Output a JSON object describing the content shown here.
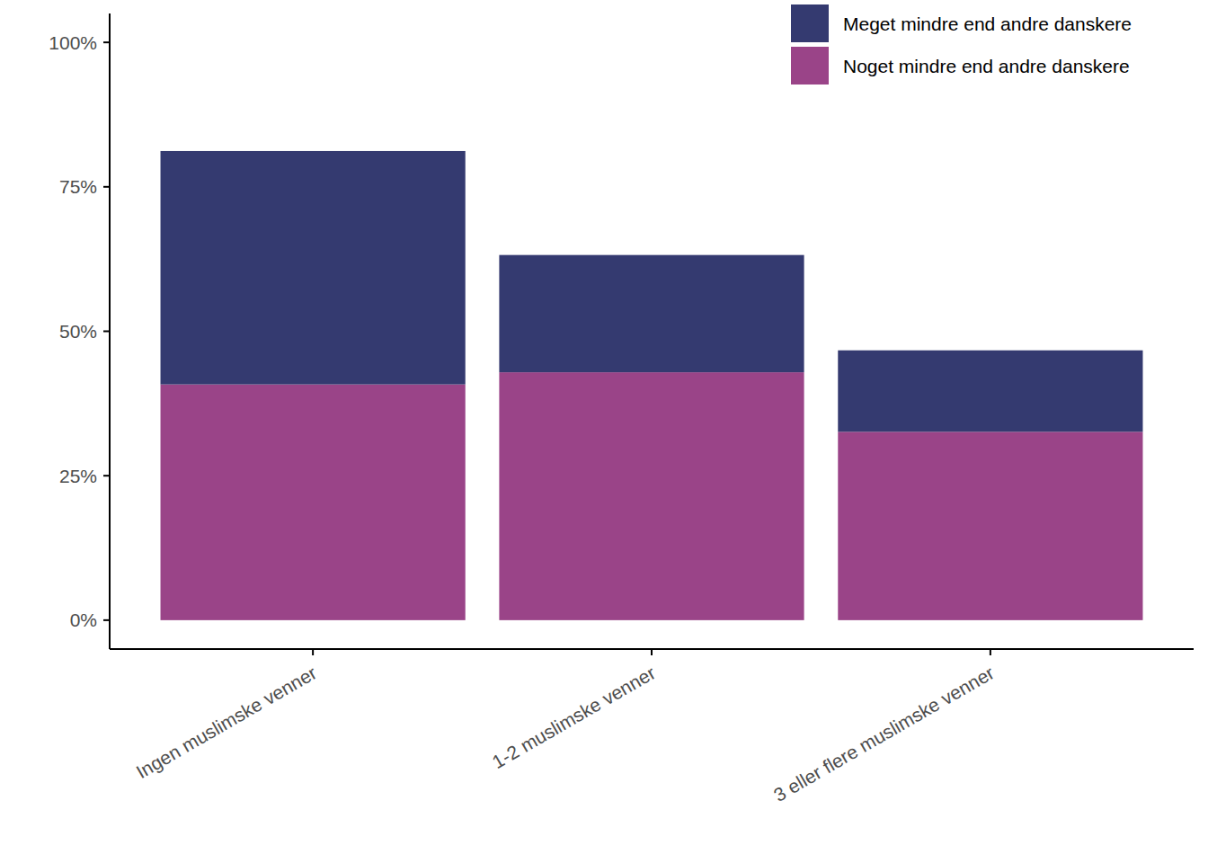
{
  "chart_data": {
    "type": "bar",
    "stacked": true,
    "legend": "top-right",
    "grid": false,
    "categories": [
      "Ingen muslimske venner",
      "1-2 muslimske venner",
      "3 eller flere muslimske venner"
    ],
    "series": [
      {
        "name": "Noget mindre end andre danskere",
        "color": "#9a4488",
        "values": [
          40.8,
          42.9,
          32.6
        ]
      },
      {
        "name": "Meget mindre end andre danskere",
        "color": "#343a70",
        "values": [
          40.4,
          20.3,
          14.1
        ]
      }
    ],
    "ylim": [
      -5,
      105
    ],
    "yticks": [
      {
        "value": 0,
        "label": "0%"
      },
      {
        "value": 25,
        "label": "25%"
      },
      {
        "value": 50,
        "label": "50%"
      },
      {
        "value": 75,
        "label": "75%"
      },
      {
        "value": 100,
        "label": "100%"
      }
    ]
  }
}
